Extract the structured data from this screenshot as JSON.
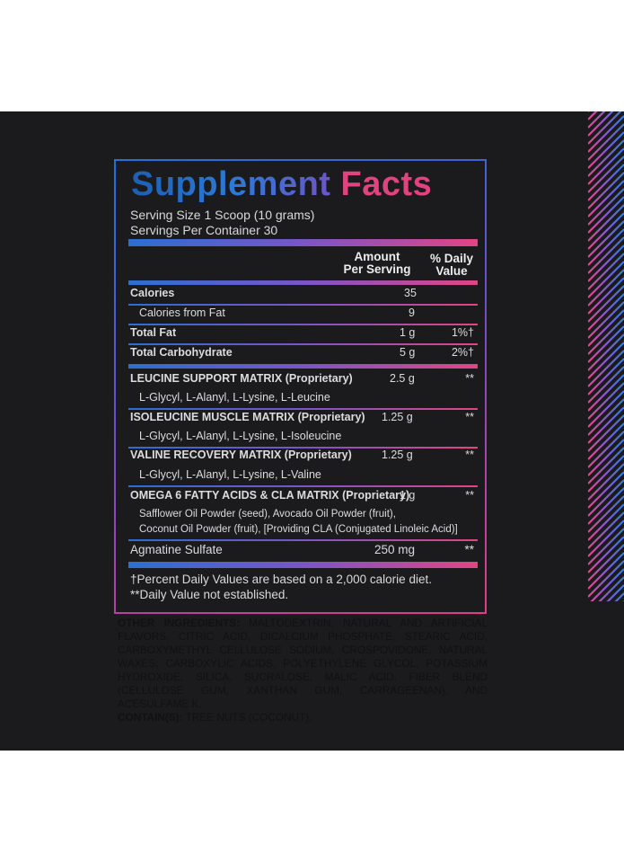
{
  "label": {
    "title_part1": "Supplement",
    "title_part2": "Facts",
    "serving_size": "Serving Size 1 Scoop (10 grams)",
    "servings_per_container": "Servings Per Container 30",
    "header_amount_line1": "Amount",
    "header_amount_line2": "Per Serving",
    "header_dv_line1": "% Daily",
    "header_dv_line2": "Value",
    "rows": [
      {
        "name": "Calories",
        "amount": "35",
        "dv": ""
      },
      {
        "name": "Calories from Fat",
        "amount": "9",
        "dv": ""
      },
      {
        "name": "Total Fat",
        "amount": "1 g",
        "dv": "1%†"
      },
      {
        "name": "Total Carbohydrate",
        "amount": "5 g",
        "dv": "2%†"
      },
      {
        "name": "LEUCINE SUPPORT MATRIX (Proprietary)",
        "amount": "2.5 g",
        "dv": "**"
      },
      {
        "name": "L-Glycyl, L-Alanyl, L-Lysine, L-Leucine"
      },
      {
        "name": "ISOLEUCINE MUSCLE MATRIX (Proprietary)",
        "amount": "1.25 g",
        "dv": "**"
      },
      {
        "name": "L-Glycyl, L-Alanyl, L-Lysine, L-Isoleucine"
      },
      {
        "name": "VALINE RECOVERY MATRIX (Proprietary)",
        "amount": "1.25 g",
        "dv": "**"
      },
      {
        "name": "L-Glycyl, L-Alanyl, L-Lysine, L-Valine"
      },
      {
        "name": "OMEGA 6 FATTY ACIDS  & CLA MATRIX (Proprietary)",
        "amount": "1 g",
        "dv": "**"
      },
      {
        "name": "Safflower Oil Powder (seed), Avocado Oil Powder (fruit),"
      },
      {
        "name": "Coconut Oil Powder (fruit), [Providing CLA (Conjugated Linoleic Acid)]"
      },
      {
        "name": "Agmatine Sulfate",
        "amount": "250 mg",
        "dv": "**"
      }
    ],
    "footnote1": "†Percent Daily Values are based on a 2,000 calorie diet.",
    "footnote2": "**Daily Value not established."
  },
  "other": {
    "ingredients_key": "OTHER INGREDIENTS:",
    "ingredients_text": " MALTODEXTRIN, NATURAL AND ARTIFICIAL FLAVORS, CITRIC ACID, DICALCIUM PHOSPHATE, STEARIC ACID, CARBOXYMETHYL CELLULOSE SODIUM, CROSPOVIDONE, NATURAL WAXES, CARBOXYLIC ACIDS, POLYETHYLENE GLYCOL, POTASSIUM HYDROXIDE, SILICA, SUCRALOSE, MALIC ACID, FIBER BLEND (CELLULOSE GUM, XANTHAN GUM, CARRAGEENAN), AND ACESULFAME K.",
    "contains_key": "CONTAIN(S):",
    "contains_text": " TREE NUTS (COCONUT)."
  },
  "colors": {
    "background": "#1b1b1d",
    "blue": "#2b6fd0",
    "pink": "#e0437f"
  }
}
